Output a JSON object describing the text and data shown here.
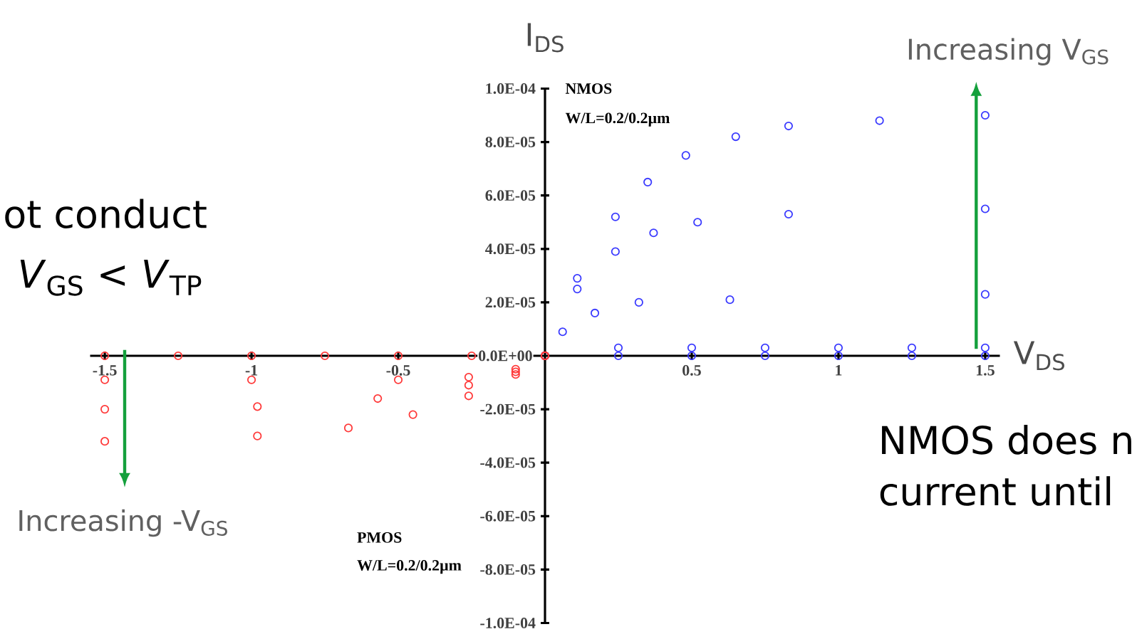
{
  "chart_data": {
    "type": "scatter",
    "marker": "circle",
    "xlabel": "V$_{DS}$",
    "ylabel": "I$_{DS}$",
    "xlim": [
      -1.55,
      1.55
    ],
    "ylim": [
      -0.0001,
      0.0001
    ],
    "xticks": [
      -1.5,
      -1,
      -0.5,
      0.5,
      1,
      1.5
    ],
    "yticks": [
      {
        "value": 0.0001,
        "label": "1.0E-04"
      },
      {
        "value": 8e-05,
        "label": "8.0E-05"
      },
      {
        "value": 6e-05,
        "label": "6.0E-05"
      },
      {
        "value": 4e-05,
        "label": "4.0E-05"
      },
      {
        "value": 2e-05,
        "label": "2.0E-05"
      },
      {
        "value": 0,
        "label": "0.0E+00"
      },
      {
        "value": -2e-05,
        "label": "-2.0E-05"
      },
      {
        "value": -4e-05,
        "label": "-4.0E-05"
      },
      {
        "value": -6e-05,
        "label": "-6.0E-05"
      },
      {
        "value": -8e-05,
        "label": "-8.0E-05"
      },
      {
        "value": -0.0001,
        "label": "-1.0E-04"
      }
    ],
    "series": [
      {
        "color": "#3a3aff",
        "x": [
          0,
          0.11,
          0.24,
          0.35,
          0.48,
          0.65,
          0.83,
          1.14,
          1.5
        ],
        "values": [
          0,
          2.9e-05,
          5.2e-05,
          6.5e-05,
          7.5e-05,
          8.2e-05,
          8.6e-05,
          8.8e-05,
          9e-05
        ]
      },
      {
        "color": "#3a3aff",
        "x": [
          0,
          0.11,
          0.24,
          0.37,
          0.52,
          0.83,
          1.5
        ],
        "values": [
          0,
          2.5e-05,
          3.9e-05,
          4.6e-05,
          5e-05,
          5.3e-05,
          5.5e-05
        ]
      },
      {
        "color": "#3a3aff",
        "x": [
          0,
          0.06,
          0.17,
          0.32,
          0.63,
          1.5
        ],
        "values": [
          0,
          9e-06,
          1.6e-05,
          2e-05,
          2.1e-05,
          2.3e-05
        ]
      },
      {
        "color": "#3a3aff",
        "x": [
          0,
          0.25,
          0.5,
          0.75,
          1,
          1.25,
          1.5
        ],
        "values": [
          0,
          3e-06,
          3e-06,
          3e-06,
          3e-06,
          3e-06,
          3e-06
        ]
      },
      {
        "color": "#3a3aff",
        "x": [
          0,
          0.25,
          0.5,
          0.75,
          1,
          1.25,
          1.5
        ],
        "values": [
          0,
          0,
          0,
          0,
          0,
          0,
          0
        ]
      },
      {
        "color": "#ff3a3a",
        "x": [
          -1.5,
          -1.25,
          -1,
          -0.75,
          -0.5,
          -0.25,
          0
        ],
        "values": [
          0,
          0,
          0,
          0,
          0,
          0,
          0
        ]
      },
      {
        "color": "#ff3a3a",
        "x": [
          -1.5,
          -1,
          -0.5,
          -0.26,
          -0.1,
          0
        ],
        "values": [
          -9e-06,
          -9e-06,
          -9e-06,
          -8e-06,
          -5e-06,
          0
        ]
      },
      {
        "color": "#ff3a3a",
        "x": [
          -1.5,
          -0.98,
          -0.57,
          -0.26,
          -0.1,
          0
        ],
        "values": [
          -2e-05,
          -1.9e-05,
          -1.6e-05,
          -1.1e-05,
          -6e-06,
          0
        ]
      },
      {
        "color": "#ff3a3a",
        "x": [
          -1.5,
          -0.98,
          -0.67,
          -0.45,
          -0.26,
          -0.1,
          0
        ],
        "values": [
          -3.2e-05,
          -3e-05,
          -2.7e-05,
          -2.2e-05,
          -1.5e-05,
          -7e-06,
          0
        ]
      }
    ],
    "annotations": [
      "NMOS",
      "W/L=0.2/0.2µm",
      "PMOS",
      "W/L=0.2/0.2µm",
      "Increasing V$_{GS}$",
      "Increasing -V$_{GS}$",
      "ot conduct",
      "*V*$_{GS}$ < *V*$_{TP}$",
      "NMOS does n",
      "current until"
    ]
  }
}
